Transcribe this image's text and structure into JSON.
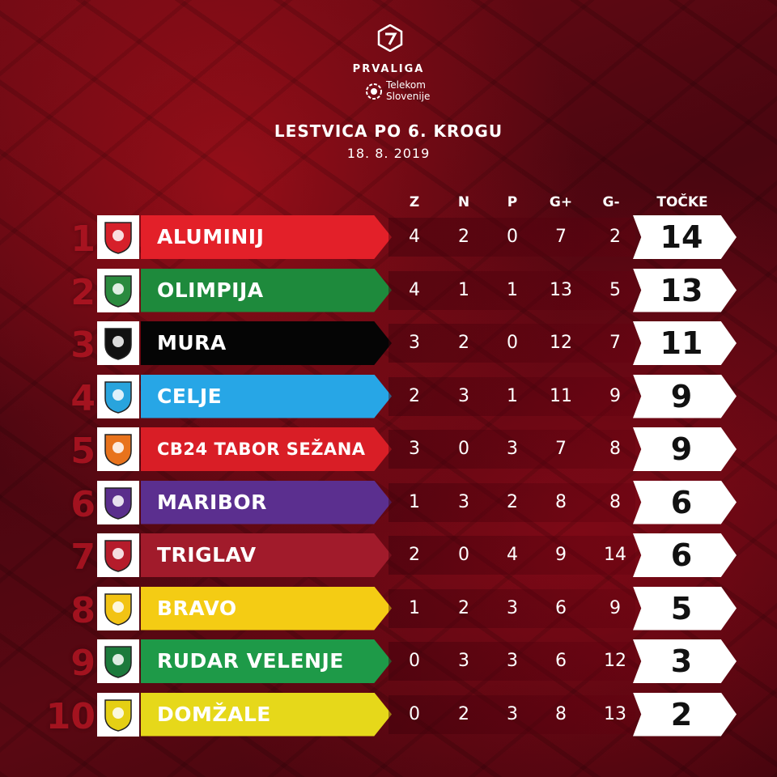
{
  "league": {
    "name": "PRVALIGA",
    "sponsor_line1": "Telekom",
    "sponsor_line2": "Slovenije"
  },
  "title": "LESTVICA PO 6. KROGU",
  "date": "18. 8. 2019",
  "columns": [
    "Z",
    "N",
    "P",
    "G+",
    "G-",
    "TOČKE"
  ],
  "rows": [
    {
      "rank": "1",
      "team": "ALUMINIJ",
      "z": "4",
      "n": "2",
      "p": "0",
      "gf": "7",
      "ga": "2",
      "pts": "14",
      "color": "#e32029",
      "crest_color": "#d6202a"
    },
    {
      "rank": "2",
      "team": "OLIMPIJA",
      "z": "4",
      "n": "1",
      "p": "1",
      "gf": "13",
      "ga": "5",
      "pts": "13",
      "color": "#1e8a3c",
      "crest_color": "#2a8a3e"
    },
    {
      "rank": "3",
      "team": "MURA",
      "z": "3",
      "n": "2",
      "p": "0",
      "gf": "12",
      "ga": "7",
      "pts": "11",
      "color": "#050505",
      "crest_color": "#111111"
    },
    {
      "rank": "4",
      "team": "CELJE",
      "z": "2",
      "n": "3",
      "p": "1",
      "gf": "11",
      "ga": "9",
      "pts": "9",
      "color": "#27a6e6",
      "crest_color": "#29a4dd"
    },
    {
      "rank": "5",
      "team": "CB24 TABOR SEŽANA",
      "z": "3",
      "n": "0",
      "p": "3",
      "gf": "7",
      "ga": "8",
      "pts": "9",
      "color": "#d91e26",
      "crest_color": "#e8731c"
    },
    {
      "rank": "6",
      "team": "MARIBOR",
      "z": "1",
      "n": "3",
      "p": "2",
      "gf": "8",
      "ga": "8",
      "pts": "6",
      "color": "#5b2f8f",
      "crest_color": "#5a2e8c"
    },
    {
      "rank": "7",
      "team": "TRIGLAV",
      "z": "2",
      "n": "0",
      "p": "4",
      "gf": "9",
      "ga": "14",
      "pts": "6",
      "color": "#a11b2b",
      "crest_color": "#b51c2b"
    },
    {
      "rank": "8",
      "team": "BRAVO",
      "z": "1",
      "n": "2",
      "p": "3",
      "gf": "6",
      "ga": "9",
      "pts": "5",
      "color": "#f4cc14",
      "crest_color": "#f2c314"
    },
    {
      "rank": "9",
      "team": "RUDAR VELENJE",
      "z": "0",
      "n": "3",
      "p": "3",
      "gf": "6",
      "ga": "12",
      "pts": "3",
      "color": "#1e9a48",
      "crest_color": "#1c7a3c"
    },
    {
      "rank": "10",
      "team": "DOMŽALE",
      "z": "0",
      "n": "2",
      "p": "3",
      "gf": "8",
      "ga": "13",
      "pts": "2",
      "color": "#e6d81a",
      "crest_color": "#e5cf14"
    }
  ]
}
